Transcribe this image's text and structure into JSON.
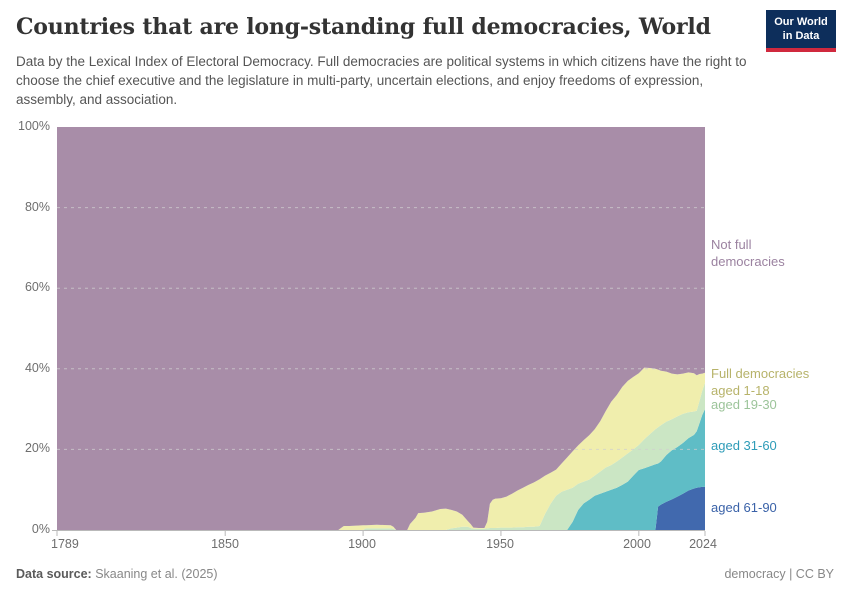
{
  "header": {
    "title": "Countries that are long-standing full democracies, World",
    "subtitle": "Data by the Lexical Index of Electoral Democracy. Full democracies are political systems in which citizens have the right to choose the chief executive and the legislature in multi-party, uncertain elections, and enjoy freedoms of expression, assembly, and association.",
    "logo": {
      "line1": "Our World",
      "line2": "in Data",
      "bg": "#0d2e5b",
      "accent": "#d0293e"
    }
  },
  "footer": {
    "source_label": "Data source:",
    "source_value": " Skaaning et al. (2025)",
    "right_text": "democracy | CC BY"
  },
  "chart_data": {
    "type": "area",
    "stacked": true,
    "grid": "dashed-horizontal",
    "legend_position": "right-of-plot",
    "x_axis": {
      "min": 1789,
      "max": 2024,
      "tick_values": [
        1789,
        1850,
        1900,
        1950,
        2000,
        2024
      ],
      "tick_labels": [
        "1789",
        "1850",
        "1900",
        "1950",
        "2000",
        "2024"
      ]
    },
    "y_axis": {
      "min": 0,
      "max": 100,
      "unit": "%",
      "tick_values": [
        0,
        20,
        40,
        60,
        80,
        100
      ],
      "tick_labels": [
        "0%",
        "20%",
        "40%",
        "60%",
        "80%",
        "100%"
      ]
    },
    "years": [
      1789,
      1880,
      1891,
      1892,
      1893,
      1895,
      1900,
      1901,
      1905,
      1910,
      1911,
      1912,
      1916,
      1917,
      1919,
      1920,
      1922,
      1925,
      1928,
      1930,
      1932,
      1934,
      1936,
      1938,
      1939,
      1940,
      1942,
      1944,
      1945,
      1946,
      1947,
      1948,
      1950,
      1952,
      1954,
      1956,
      1958,
      1960,
      1962,
      1964,
      1966,
      1968,
      1970,
      1972,
      1974,
      1976,
      1978,
      1980,
      1982,
      1984,
      1986,
      1988,
      1990,
      1992,
      1994,
      1996,
      1998,
      2000,
      2002,
      2004,
      2006,
      2007,
      2008,
      2010,
      2012,
      2014,
      2016,
      2018,
      2020,
      2021,
      2022,
      2023,
      2024
    ],
    "series": [
      {
        "id": "aged-61-90",
        "label": "aged 61-90",
        "color": "#4169ae",
        "label_color": "#3a62a8",
        "values": [
          0,
          0,
          0,
          0,
          0,
          0,
          0,
          0,
          0,
          0,
          0,
          0,
          0,
          0,
          0,
          0,
          0,
          0,
          0,
          0,
          0,
          0,
          0,
          0,
          0,
          0,
          0,
          0,
          0,
          0,
          0,
          0,
          0,
          0,
          0,
          0,
          0,
          0,
          0,
          0,
          0,
          0,
          0,
          0,
          0,
          0,
          0,
          0,
          0,
          0,
          0,
          0,
          0,
          0,
          0,
          0,
          0,
          0,
          0,
          0,
          0,
          5.8,
          6.3,
          7.0,
          7.6,
          8.3,
          9.0,
          9.8,
          10.3,
          10.5,
          10.6,
          10.7,
          10.7
        ]
      },
      {
        "id": "aged-31-60",
        "label": "aged 31-60",
        "color": "#5fbdc6",
        "label_color": "#2e9cb8",
        "values": [
          0,
          0,
          0,
          0,
          0,
          0,
          0,
          0,
          0,
          0,
          0,
          0,
          0,
          0,
          0,
          0,
          0,
          0,
          0,
          0,
          0,
          0,
          0,
          0,
          0,
          0,
          0,
          0,
          0,
          0,
          0,
          0,
          0,
          0,
          0,
          0,
          0,
          0,
          0,
          0,
          0,
          0,
          0,
          0,
          0,
          2.0,
          5.0,
          6.6,
          7.5,
          8.5,
          9.0,
          9.5,
          10.0,
          10.5,
          11.2,
          12.0,
          13.5,
          14.9,
          15.3,
          15.8,
          16.3,
          10.7,
          10.7,
          11.6,
          12.2,
          12.3,
          12.6,
          13.0,
          13.3,
          14.0,
          15.9,
          17.8,
          19.3
        ]
      },
      {
        "id": "aged-19-30",
        "label": "aged 19-30",
        "color": "#cbe6c4",
        "label_color": "#9cc49a",
        "values": [
          0,
          0,
          0,
          0,
          0,
          0,
          0,
          0.4,
          0.4,
          0.4,
          0.3,
          0,
          0,
          0,
          0,
          0,
          0,
          0,
          0,
          0,
          0.4,
          0.6,
          0.8,
          0.8,
          0.5,
          0.3,
          0.3,
          0.3,
          0.4,
          0.5,
          0.5,
          0.5,
          0.6,
          0.6,
          0.6,
          0.7,
          0.7,
          0.8,
          0.8,
          1.0,
          4.0,
          6.5,
          8.5,
          9.5,
          10.0,
          8.5,
          6.5,
          5.4,
          5.0,
          5.0,
          5.5,
          6.0,
          6.1,
          6.5,
          6.8,
          7.0,
          6.5,
          6.2,
          7.2,
          8.0,
          8.7,
          9.0,
          9.0,
          8.3,
          7.7,
          7.6,
          7.2,
          6.4,
          5.8,
          5.1,
          5.5,
          6.0,
          6.5
        ]
      },
      {
        "id": "aged-1-18",
        "label": "Full democracies\naged 1-18",
        "color": "#f0eead",
        "label_color": "#b7b36a",
        "values": [
          0,
          0,
          0,
          0.5,
          1.0,
          1.0,
          1.2,
          0.8,
          0.9,
          0.8,
          0.5,
          0,
          0,
          1.5,
          3.0,
          4.2,
          4.3,
          4.6,
          5.2,
          5.3,
          4.6,
          4.0,
          3.0,
          1.4,
          1.0,
          0.3,
          0.2,
          0.2,
          1.6,
          6.0,
          7.0,
          7.3,
          7.3,
          7.7,
          8.4,
          9.1,
          9.8,
          10.4,
          11.0,
          11.6,
          9.5,
          7.7,
          6.5,
          7.0,
          8.0,
          9.0,
          9.5,
          10.3,
          11.0,
          11.5,
          12.5,
          14.0,
          15.7,
          16.5,
          17.5,
          18.0,
          18.0,
          17.8,
          17.8,
          16.4,
          15.0,
          14.3,
          13.5,
          12.4,
          11.3,
          10.4,
          10.0,
          9.9,
          9.5,
          8.8,
          6.7,
          4.3,
          2.5
        ]
      },
      {
        "id": "not-full-democracies",
        "label": "Not full\ndemocracies",
        "color": "#a88da8",
        "label_color": "#9b82a0",
        "remainder": true
      }
    ]
  }
}
